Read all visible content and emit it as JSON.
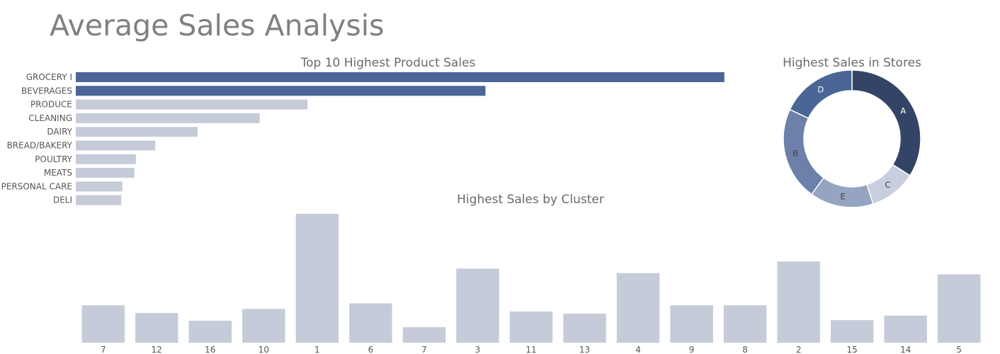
{
  "page": {
    "title": "Average Sales Analysis"
  },
  "chart_data": [
    {
      "type": "bar",
      "orientation": "horizontal",
      "title": "Top 10 Highest Product Sales",
      "xlabel": "",
      "ylabel": "",
      "categories": [
        "GROCERY I",
        "BEVERAGES",
        "PRODUCE",
        "CLEANING",
        "DAIRY",
        "BREAD/BAKERY",
        "POULTRY",
        "MEATS",
        "PERSONAL CARE",
        "DELI"
      ],
      "values": [
        3776,
        2385,
        1349,
        1071,
        709,
        463,
        350,
        341,
        271,
        265
      ],
      "xlim": [
        0,
        3950
      ],
      "highlight_count": 2,
      "colors": {
        "highlight": "#4a6596",
        "default": "#c5cbd8"
      },
      "grid": false
    },
    {
      "type": "pie",
      "style": "donut",
      "title": "Highest Sales in Stores",
      "labels": [
        "A",
        "C",
        "E",
        "B",
        "D"
      ],
      "values": [
        34,
        11,
        15,
        22,
        18
      ],
      "colors": [
        "#334466",
        "#c9cedf",
        "#95a4c0",
        "#6c80aa",
        "#4a6596"
      ],
      "label_colors": [
        "#ffffff",
        "#444444",
        "#444444",
        "#444444",
        "#ffffff"
      ]
    },
    {
      "type": "bar",
      "title": "Highest Sales by Cluster",
      "xlabel": "",
      "ylabel": "",
      "categories": [
        "7",
        "12",
        "16",
        "10",
        "1",
        "6",
        "7",
        "3",
        "11",
        "13",
        "4",
        "9",
        "8",
        "2",
        "15",
        "14",
        "5"
      ],
      "values": [
        290,
        230,
        170,
        262,
        1000,
        305,
        120,
        575,
        242,
        225,
        540,
        290,
        290,
        630,
        175,
        210,
        530
      ],
      "ylim": [
        0,
        1000
      ],
      "colors": {
        "default": "#c5cbd8"
      },
      "grid": false
    }
  ]
}
